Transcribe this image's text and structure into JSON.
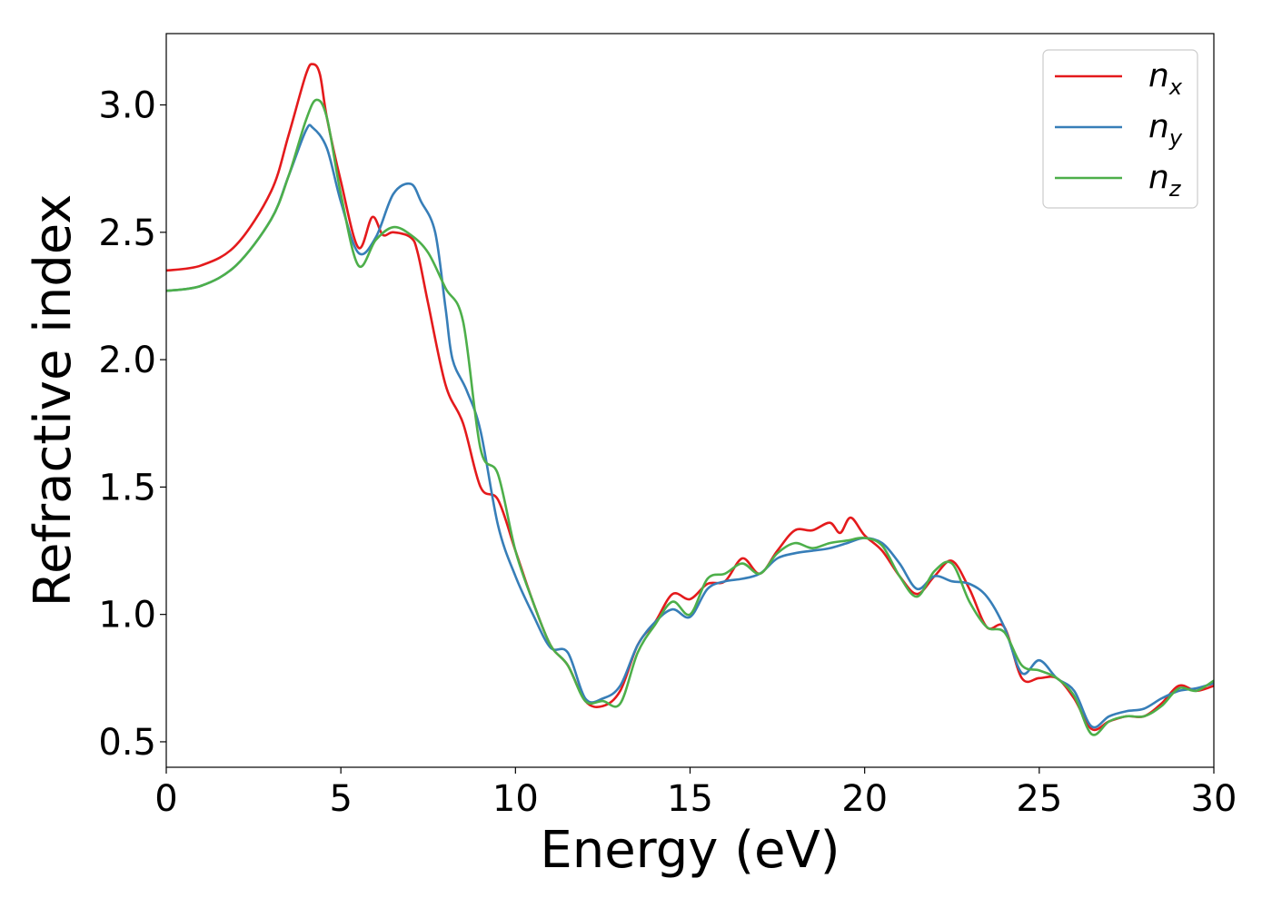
{
  "chart_data": {
    "type": "line",
    "title": "",
    "xlabel": "Energy (eV)",
    "ylabel": "Refractive index",
    "xlim": [
      0,
      30
    ],
    "ylim": [
      0.4,
      3.28
    ],
    "xticks": [
      0,
      5,
      10,
      15,
      20,
      25,
      30
    ],
    "yticks": [
      0.5,
      1.0,
      1.5,
      2.0,
      2.5,
      3.0
    ],
    "xtick_labels": [
      "0",
      "5",
      "10",
      "15",
      "20",
      "25",
      "30"
    ],
    "ytick_labels": [
      "0.5",
      "1.0",
      "1.5",
      "2.0",
      "2.5",
      "3.0"
    ],
    "grid": false,
    "legend_position": "top-right",
    "series": [
      {
        "name": "n_x",
        "label_base": "n",
        "label_sub": "x",
        "color": "#e41a1c",
        "points": [
          [
            0,
            2.35
          ],
          [
            1,
            2.37
          ],
          [
            2,
            2.45
          ],
          [
            3,
            2.66
          ],
          [
            3.5,
            2.88
          ],
          [
            4,
            3.12
          ],
          [
            4.2,
            3.16
          ],
          [
            4.4,
            3.12
          ],
          [
            4.6,
            2.95
          ],
          [
            5,
            2.7
          ],
          [
            5.5,
            2.44
          ],
          [
            5.9,
            2.56
          ],
          [
            6.2,
            2.49
          ],
          [
            6.5,
            2.5
          ],
          [
            7,
            2.48
          ],
          [
            7.2,
            2.42
          ],
          [
            7.5,
            2.22
          ],
          [
            8,
            1.9
          ],
          [
            8.5,
            1.75
          ],
          [
            9,
            1.5
          ],
          [
            9.5,
            1.45
          ],
          [
            10,
            1.25
          ],
          [
            10.5,
            1.05
          ],
          [
            11,
            0.88
          ],
          [
            11.5,
            0.8
          ],
          [
            12,
            0.66
          ],
          [
            12.5,
            0.64
          ],
          [
            13,
            0.7
          ],
          [
            13.5,
            0.88
          ],
          [
            14,
            0.97
          ],
          [
            14.5,
            1.08
          ],
          [
            15,
            1.06
          ],
          [
            15.5,
            1.12
          ],
          [
            16,
            1.13
          ],
          [
            16.5,
            1.22
          ],
          [
            17,
            1.16
          ],
          [
            17.5,
            1.25
          ],
          [
            18,
            1.33
          ],
          [
            18.5,
            1.33
          ],
          [
            19,
            1.36
          ],
          [
            19.3,
            1.32
          ],
          [
            19.6,
            1.38
          ],
          [
            20,
            1.31
          ],
          [
            20.5,
            1.25
          ],
          [
            21,
            1.15
          ],
          [
            21.5,
            1.08
          ],
          [
            22,
            1.15
          ],
          [
            22.5,
            1.21
          ],
          [
            23,
            1.1
          ],
          [
            23.5,
            0.95
          ],
          [
            24,
            0.95
          ],
          [
            24.5,
            0.75
          ],
          [
            25,
            0.75
          ],
          [
            25.5,
            0.75
          ],
          [
            26,
            0.67
          ],
          [
            26.5,
            0.55
          ],
          [
            27,
            0.58
          ],
          [
            27.5,
            0.6
          ],
          [
            28,
            0.6
          ],
          [
            28.5,
            0.65
          ],
          [
            29,
            0.72
          ],
          [
            29.5,
            0.7
          ],
          [
            30,
            0.72
          ]
        ]
      },
      {
        "name": "n_y",
        "label_base": "n",
        "label_sub": "y",
        "color": "#377eb8",
        "points": [
          [
            0,
            2.27
          ],
          [
            1,
            2.29
          ],
          [
            2,
            2.37
          ],
          [
            3,
            2.55
          ],
          [
            3.5,
            2.72
          ],
          [
            4,
            2.9
          ],
          [
            4.2,
            2.91
          ],
          [
            4.6,
            2.83
          ],
          [
            5,
            2.62
          ],
          [
            5.5,
            2.42
          ],
          [
            6,
            2.48
          ],
          [
            6.5,
            2.65
          ],
          [
            7,
            2.69
          ],
          [
            7.3,
            2.62
          ],
          [
            7.7,
            2.5
          ],
          [
            8,
            2.2
          ],
          [
            8.2,
            2.0
          ],
          [
            8.6,
            1.88
          ],
          [
            9,
            1.72
          ],
          [
            9.5,
            1.35
          ],
          [
            10,
            1.15
          ],
          [
            10.5,
            1.0
          ],
          [
            11,
            0.87
          ],
          [
            11.5,
            0.85
          ],
          [
            12,
            0.67
          ],
          [
            12.5,
            0.67
          ],
          [
            13,
            0.72
          ],
          [
            13.5,
            0.88
          ],
          [
            14,
            0.97
          ],
          [
            14.5,
            1.02
          ],
          [
            15,
            0.99
          ],
          [
            15.5,
            1.1
          ],
          [
            16,
            1.13
          ],
          [
            16.5,
            1.14
          ],
          [
            17,
            1.16
          ],
          [
            17.5,
            1.22
          ],
          [
            18,
            1.24
          ],
          [
            18.5,
            1.25
          ],
          [
            19,
            1.26
          ],
          [
            19.5,
            1.28
          ],
          [
            20,
            1.3
          ],
          [
            20.5,
            1.28
          ],
          [
            21,
            1.2
          ],
          [
            21.5,
            1.1
          ],
          [
            22,
            1.15
          ],
          [
            22.5,
            1.13
          ],
          [
            23,
            1.12
          ],
          [
            23.5,
            1.07
          ],
          [
            24,
            0.95
          ],
          [
            24.5,
            0.77
          ],
          [
            25,
            0.82
          ],
          [
            25.5,
            0.75
          ],
          [
            26,
            0.7
          ],
          [
            26.5,
            0.56
          ],
          [
            27,
            0.6
          ],
          [
            27.5,
            0.62
          ],
          [
            28,
            0.63
          ],
          [
            28.5,
            0.67
          ],
          [
            29,
            0.7
          ],
          [
            29.5,
            0.71
          ],
          [
            30,
            0.73
          ]
        ]
      },
      {
        "name": "n_z",
        "label_base": "n",
        "label_sub": "z",
        "color": "#4daf4a",
        "points": [
          [
            0,
            2.27
          ],
          [
            1,
            2.29
          ],
          [
            2,
            2.37
          ],
          [
            3,
            2.55
          ],
          [
            3.5,
            2.72
          ],
          [
            4,
            2.94
          ],
          [
            4.3,
            3.02
          ],
          [
            4.6,
            2.95
          ],
          [
            5,
            2.65
          ],
          [
            5.5,
            2.37
          ],
          [
            6,
            2.47
          ],
          [
            6.5,
            2.52
          ],
          [
            7,
            2.49
          ],
          [
            7.5,
            2.42
          ],
          [
            8,
            2.28
          ],
          [
            8.5,
            2.15
          ],
          [
            9,
            1.65
          ],
          [
            9.5,
            1.55
          ],
          [
            10,
            1.25
          ],
          [
            10.5,
            1.05
          ],
          [
            11,
            0.88
          ],
          [
            11.5,
            0.8
          ],
          [
            12,
            0.66
          ],
          [
            12.5,
            0.66
          ],
          [
            13,
            0.65
          ],
          [
            13.5,
            0.85
          ],
          [
            14,
            0.96
          ],
          [
            14.5,
            1.05
          ],
          [
            15,
            1.0
          ],
          [
            15.5,
            1.14
          ],
          [
            16,
            1.16
          ],
          [
            16.5,
            1.2
          ],
          [
            17,
            1.16
          ],
          [
            17.5,
            1.24
          ],
          [
            18,
            1.28
          ],
          [
            18.5,
            1.26
          ],
          [
            19,
            1.28
          ],
          [
            19.5,
            1.29
          ],
          [
            20,
            1.3
          ],
          [
            20.5,
            1.27
          ],
          [
            21,
            1.15
          ],
          [
            21.5,
            1.07
          ],
          [
            22,
            1.17
          ],
          [
            22.5,
            1.2
          ],
          [
            23,
            1.05
          ],
          [
            23.5,
            0.95
          ],
          [
            24,
            0.93
          ],
          [
            24.5,
            0.8
          ],
          [
            25,
            0.78
          ],
          [
            25.5,
            0.75
          ],
          [
            26,
            0.68
          ],
          [
            26.5,
            0.53
          ],
          [
            27,
            0.58
          ],
          [
            27.5,
            0.6
          ],
          [
            28,
            0.6
          ],
          [
            28.5,
            0.64
          ],
          [
            29,
            0.71
          ],
          [
            29.5,
            0.7
          ],
          [
            30,
            0.74
          ]
        ]
      }
    ]
  }
}
